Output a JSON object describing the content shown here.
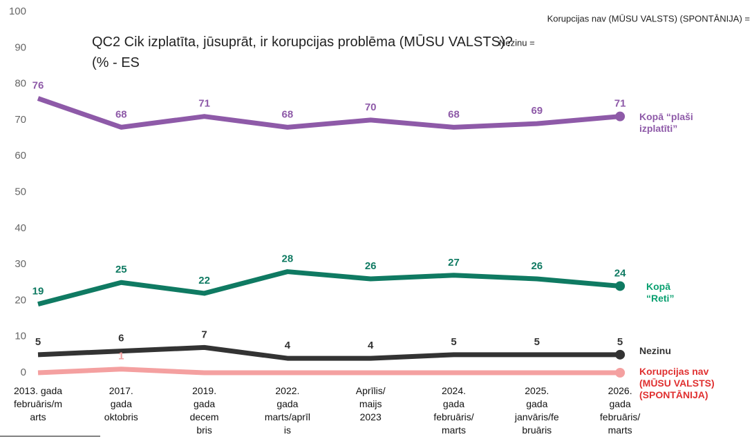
{
  "chart_data": {
    "type": "line",
    "title": "QC2 Cik izplatīta, jūsuprāt, ir korupcijas problēma (MŪSU VALSTS)?\n(% - ES",
    "annotations": [
      "Korupcijas nav (MŪSU VALSTS) (SPONTĀNIJA) =",
      "Nezinu ="
    ],
    "categories": [
      "2013. gada\nfebruāris/m\narts",
      "2017.\ngada\noktobris",
      "2019.\ngada\ndecem\nbris",
      "2022.\ngada\nmarts/aprīl\nis",
      "Aprīlis/\nmaijs\n2023",
      "2024.\ngada\nfebruāris/\nmarts",
      "2025.\ngada\njanvāris/fe\nbruāris",
      "2026.\ngada\nfebruāris/\nmarts"
    ],
    "series": [
      {
        "name": "Kopā “plaši\nizplatīti”",
        "color": "#8e5aa8",
        "values": [
          76,
          68,
          71,
          68,
          70,
          68,
          69,
          71
        ]
      },
      {
        "name": "Kopā\n“Reti”",
        "color": "#0f7a62",
        "values": [
          19,
          25,
          22,
          28,
          26,
          27,
          26,
          24
        ]
      },
      {
        "name": "Nezinu",
        "color": "#333333",
        "values": [
          5,
          6,
          7,
          4,
          4,
          5,
          5,
          5
        ]
      },
      {
        "name": "Korupcijas nav\n(MŪSU VALSTS)\n(SPONTĀNIJA)",
        "color": "#f4a0a0",
        "values": [
          0,
          1,
          0,
          0,
          0,
          0,
          0,
          0
        ],
        "value_labels": [
          null,
          "1",
          null,
          null,
          null,
          null,
          null,
          null
        ]
      }
    ],
    "ylim": [
      0,
      100
    ],
    "yticks": [
      0,
      10,
      20,
      30,
      40,
      50,
      60,
      70,
      80,
      90,
      100
    ]
  }
}
